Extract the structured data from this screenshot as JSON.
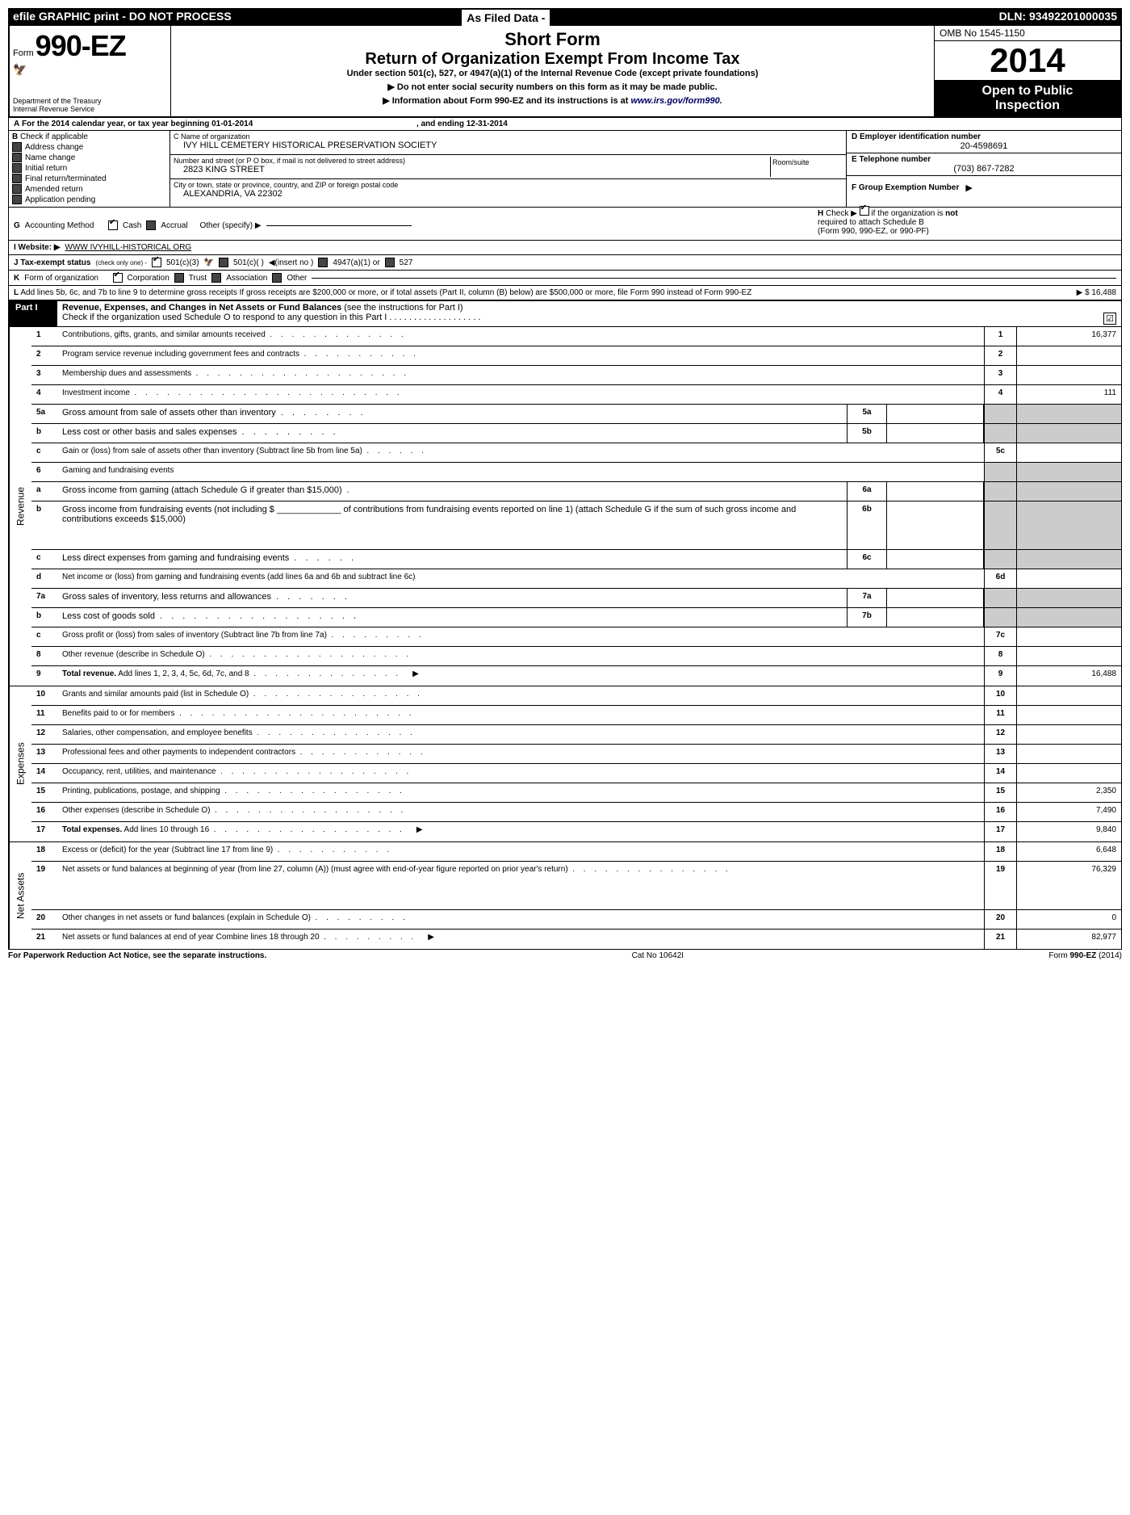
{
  "top": {
    "efile": "efile GRAPHIC print - DO NOT PROCESS",
    "asFiled": "As Filed Data -",
    "dln": "DLN: 93492201000035"
  },
  "header": {
    "formWord": "Form",
    "formNum": "990-EZ",
    "dept1": "Department of the Treasury",
    "dept2": "Internal Revenue Service",
    "shortForm": "Short Form",
    "returnTitle": "Return of Organization Exempt From Income Tax",
    "underSection": "Under section 501(c), 527, or 4947(a)(1) of the Internal Revenue Code (except private foundations)",
    "arrow1": "▶ Do not enter social security numbers on this form as it may be made public.",
    "arrow2": "▶ Information about Form 990-EZ and its instructions is at ",
    "irsLink": "www.irs.gov/form990.",
    "omb": "OMB No 1545-1150",
    "year": "2014",
    "open1": "Open to Public",
    "open2": "Inspection"
  },
  "rowA": {
    "label": "A",
    "text1": "For the 2014 calendar year, or tax year beginning 01-01-2014",
    "text2": ", and ending 12-31-2014"
  },
  "colB": {
    "label": "B",
    "text": "Check if applicable",
    "items": [
      "Address change",
      "Name change",
      "Initial return",
      "Final return/terminated",
      "Amended return",
      "Application pending"
    ]
  },
  "colC": {
    "nameLabel": "C Name of organization",
    "nameVal": "IVY HILL CEMETERY HISTORICAL PRESERVATION SOCIETY",
    "streetLabel": "Number and street (or P O box, if mail is not delivered to street address)",
    "roomLabel": "Room/suite",
    "streetVal": "2823 KING STREET",
    "cityLabel": "City or town, state or province, country, and ZIP or foreign postal code",
    "cityVal": "ALEXANDRIA, VA 22302"
  },
  "colD": {
    "einLabel": "D Employer identification number",
    "einVal": "20-4598691",
    "phoneLabel": "E Telephone number",
    "phoneVal": "(703) 867-7282",
    "groupLabel": "F Group Exemption Number",
    "arrow": "▶"
  },
  "rowG": {
    "label": "G",
    "text": "Accounting Method",
    "cash": "Cash",
    "accrual": "Accrual",
    "other": "Other (specify) ▶"
  },
  "rowH": {
    "label": "H",
    "text1": "Check ▶",
    "text2": "if the organization is",
    "not": "not",
    "text3": "required to attach Schedule B",
    "text4": "(Form 990, 990-EZ, or 990-PF)"
  },
  "rowI": {
    "label": "I Website: ▶",
    "val": "WWW IVYHILL-HISTORICAL ORG"
  },
  "rowJ": {
    "label": "J Tax-exempt status",
    "subtext": "(check only one) -",
    "opt1": "501(c)(3)",
    "opt2": "501(c)(  )",
    "insert": "◀(insert no )",
    "opt3": "4947(a)(1) or",
    "opt4": "527"
  },
  "rowK": {
    "label": "K",
    "text": "Form of organization",
    "corp": "Corporation",
    "trust": "Trust",
    "assoc": "Association",
    "other": "Other"
  },
  "rowL": {
    "label": "L",
    "text": "Add lines 5b, 6c, and 7b to line 9 to determine gross receipts If gross receipts are $200,000 or more, or if total assets (Part II, column (B) below) are $500,000 or more, file Form 990 instead of Form 990-EZ",
    "arrow": "▶",
    "val": "$ 16,488"
  },
  "part1": {
    "label": "Part I",
    "title": "Revenue, Expenses, and Changes in Net Assets or Fund Balances",
    "subtitle": "(see the instructions for Part I)",
    "scheduleO": "Check if the organization used Schedule O to respond to any question in this Part I . . . . . . . . . . . . . . . . . . .",
    "checkMark": "☑"
  },
  "sidebars": {
    "revenue": "Revenue",
    "expenses": "Expenses",
    "netAssets": "Net Assets"
  },
  "lines": [
    {
      "no": "1",
      "desc": "Contributions, gifts, grants, and similar amounts received",
      "dots": ". . . . . . . . . . . . .",
      "rno": "1",
      "val": "16,377"
    },
    {
      "no": "2",
      "desc": "Program service revenue including government fees and contracts",
      "dots": ". . . . . . . . . . .",
      "rno": "2",
      "val": ""
    },
    {
      "no": "3",
      "desc": "Membership dues and assessments",
      "dots": ". . . . . . . . . . . . . . . . . . . .",
      "rno": "3",
      "val": ""
    },
    {
      "no": "4",
      "desc": "Investment income",
      "dots": ". . . . . . . . . . . . . . . . . . . . . . . . .",
      "rno": "4",
      "val": "111"
    },
    {
      "no": "5a",
      "desc": "Gross amount from sale of assets other than inventory",
      "dots": ". . . . . . . .",
      "sub": "5a",
      "subval": "",
      "shaded": true
    },
    {
      "no": "b",
      "desc": "Less cost or other basis and sales expenses",
      "dots": ". . . . . . . . .",
      "sub": "5b",
      "subval": "",
      "shaded": true
    },
    {
      "no": "c",
      "desc": "Gain or (loss) from sale of assets other than inventory (Subtract line 5b from line 5a)",
      "dots": ". . . . . .",
      "rno": "5c",
      "val": ""
    },
    {
      "no": "6",
      "desc": "Gaming and fundraising events",
      "dots": "",
      "shaded": true,
      "noright": true
    },
    {
      "no": "a",
      "desc": "Gross income from gaming (attach Schedule G if greater than $15,000)",
      "dots": ".",
      "sub": "6a",
      "subval": "",
      "shaded": true
    },
    {
      "no": "b",
      "desc": "Gross income from fundraising events (not including $ _____________ of contributions from fundraising events reported on line 1) (attach Schedule G if the sum of such gross income and contributions exceeds $15,000)",
      "dots": "",
      "sub": "6b",
      "subval": "",
      "shaded": true,
      "tall": true
    },
    {
      "no": "c",
      "desc": "Less direct expenses from gaming and fundraising events",
      "dots": ". . . . . .",
      "sub": "6c",
      "subval": "",
      "shaded": true
    },
    {
      "no": "d",
      "desc": "Net income or (loss) from gaming and fundraising events (add lines 6a and 6b and subtract line 6c)",
      "dots": "",
      "rno": "6d",
      "val": ""
    },
    {
      "no": "7a",
      "desc": "Gross sales of inventory, less returns and allowances",
      "dots": ". . . . . . .",
      "sub": "7a",
      "subval": "",
      "shaded": true
    },
    {
      "no": "b",
      "desc": "Less cost of goods sold",
      "dots": ". . . . . . . . . . . . . . . . . .",
      "sub": "7b",
      "subval": "",
      "shaded": true
    },
    {
      "no": "c",
      "desc": "Gross profit or (loss) from sales of inventory (Subtract line 7b from line 7a)",
      "dots": ". . . . . . . . .",
      "rno": "7c",
      "val": ""
    },
    {
      "no": "8",
      "desc": "Other revenue (describe in Schedule O)",
      "dots": ". . . . . . . . . . . . . . . . . . .",
      "rno": "8",
      "val": ""
    },
    {
      "no": "9",
      "desc": "Total revenue.",
      "descExtra": " Add lines 1, 2, 3, 4, 5c, 6d, 7c, and 8",
      "dots": ". . . . . . . . . . . . . .",
      "arrow": "▶",
      "rno": "9",
      "val": "16,488",
      "bold": true
    }
  ],
  "expenses": [
    {
      "no": "10",
      "desc": "Grants and similar amounts paid (list in Schedule O)",
      "dots": ". . . . . . . . . . . . . . . .",
      "rno": "10",
      "val": ""
    },
    {
      "no": "11",
      "desc": "Benefits paid to or for members",
      "dots": ". . . . . . . . . . . . . . . . . . . . . .",
      "rno": "11",
      "val": ""
    },
    {
      "no": "12",
      "desc": "Salaries, other compensation, and employee benefits",
      "dots": ". . . . . . . . . . . . . . .",
      "rno": "12",
      "val": ""
    },
    {
      "no": "13",
      "desc": "Professional fees and other payments to independent contractors",
      "dots": ". . . . . . . . . . . .",
      "rno": "13",
      "val": ""
    },
    {
      "no": "14",
      "desc": "Occupancy, rent, utilities, and maintenance",
      "dots": ". . . . . . . . . . . . . . . . . .",
      "rno": "14",
      "val": ""
    },
    {
      "no": "15",
      "desc": "Printing, publications, postage, and shipping",
      "dots": ". . . . . . . . . . . . . . . . .",
      "rno": "15",
      "val": "2,350"
    },
    {
      "no": "16",
      "desc": "Other expenses (describe in Schedule O)",
      "dots": ". . . . . . . . . . . . . . . . . .",
      "rno": "16",
      "val": "7,490"
    },
    {
      "no": "17",
      "desc": "Total expenses.",
      "descExtra": " Add lines 10 through 16",
      "dots": ". . . . . . . . . . . . . . . . . .",
      "arrow": "▶",
      "rno": "17",
      "val": "9,840",
      "bold": true
    }
  ],
  "netassets": [
    {
      "no": "18",
      "desc": "Excess or (deficit) for the year (Subtract line 17 from line 9)",
      "dots": ". . . . . . . . . . .",
      "rno": "18",
      "val": "6,648"
    },
    {
      "no": "19",
      "desc": "Net assets or fund balances at beginning of year (from line 27, column (A)) (must agree with end-of-year figure reported on prior year's return)",
      "dots": ". . . . . . . . . . . . . . .",
      "rno": "19",
      "val": "76,329",
      "tall": true
    },
    {
      "no": "20",
      "desc": "Other changes in net assets or fund balances (explain in Schedule O)",
      "dots": ". . . . . . . . .",
      "rno": "20",
      "val": "0"
    },
    {
      "no": "21",
      "desc": "Net assets or fund balances at end of year Combine lines 18 through 20",
      "dots": ". . . . . . . . .",
      "arrow": "▶",
      "rno": "21",
      "val": "82,977"
    }
  ],
  "footer": {
    "left": "For Paperwork Reduction Act Notice, see the separate instructions.",
    "mid": "Cat No 10642I",
    "right": "Form 990-EZ (2014)"
  }
}
